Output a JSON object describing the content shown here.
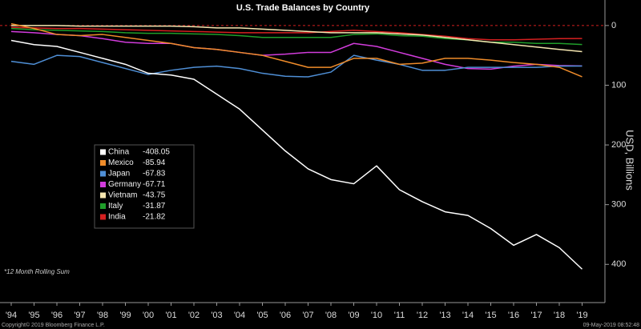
{
  "chart_data": {
    "type": "line",
    "title": "U.S. Trade Balances by Country",
    "y_axis_label": "USD, Billions",
    "note": "*12 Month Rolling Sum",
    "copyright": "Copyright© 2019 Bloomberg Finance L.P.",
    "timestamp": "09-May-2019 08:52:48",
    "categories": [
      "'94",
      "'95",
      "'96",
      "'97",
      "'98",
      "'99",
      "'00",
      "'01",
      "'02",
      "'03",
      "'04",
      "'05",
      "'06",
      "'07",
      "'08",
      "'09",
      "'10",
      "'11",
      "'12",
      "'13",
      "'14",
      "'15",
      "'16",
      "'17",
      "'18",
      "'19"
    ],
    "ylim": [
      -464,
      32
    ],
    "yticks": [
      {
        "value": 0,
        "label": "0"
      },
      {
        "value": -100,
        "label": "100"
      },
      {
        "value": -200,
        "label": "200"
      },
      {
        "value": -300,
        "label": "300"
      },
      {
        "value": -400,
        "label": "400"
      }
    ],
    "reference_line": {
      "value": 0,
      "color": "#d62020"
    },
    "series": [
      {
        "name": "China",
        "color": "#ffffff",
        "latest": -408.05,
        "values": [
          -25,
          -32,
          -35,
          -45,
          -55,
          -65,
          -80,
          -83,
          -90,
          -115,
          -140,
          -175,
          -210,
          -240,
          -258,
          -265,
          -235,
          -275,
          -295,
          -312,
          -318,
          -340,
          -368,
          -350,
          -372,
          -408.05
        ]
      },
      {
        "name": "Mexico",
        "color": "#f08c2a",
        "latest": -85.94,
        "values": [
          3,
          -5,
          -15,
          -17,
          -15,
          -20,
          -25,
          -30,
          -37,
          -40,
          -45,
          -50,
          -60,
          -70,
          -70,
          -55,
          -55,
          -65,
          -63,
          -55,
          -55,
          -58,
          -62,
          -65,
          -70,
          -85.94
        ]
      },
      {
        "name": "Japan",
        "color": "#4f8fd6",
        "latest": -67.83,
        "values": [
          -60,
          -65,
          -50,
          -52,
          -62,
          -72,
          -82,
          -75,
          -70,
          -68,
          -72,
          -80,
          -85,
          -86,
          -78,
          -50,
          -58,
          -65,
          -75,
          -75,
          -70,
          -70,
          -70,
          -70,
          -68,
          -67.83
        ]
      },
      {
        "name": "Germany",
        "color": "#d23cdc",
        "latest": -67.71,
        "values": [
          -10,
          -12,
          -15,
          -17,
          -22,
          -28,
          -30,
          -30,
          -37,
          -40,
          -45,
          -50,
          -48,
          -45,
          -45,
          -30,
          -35,
          -45,
          -55,
          -65,
          -72,
          -73,
          -68,
          -65,
          -67,
          -67.71
        ]
      },
      {
        "name": "Vietnam",
        "color": "#f5e6b0",
        "latest": -43.75,
        "values": [
          0,
          0,
          0,
          -1,
          -1,
          -1,
          -1,
          -1,
          -2,
          -4,
          -4,
          -6,
          -8,
          -10,
          -12,
          -12,
          -12,
          -14,
          -16,
          -20,
          -24,
          -28,
          -32,
          -36,
          -40,
          -43.75
        ]
      },
      {
        "name": "Italy",
        "color": "#1f9e2a",
        "latest": -31.87,
        "values": [
          -5,
          -7,
          -8,
          -9,
          -10,
          -12,
          -13,
          -13,
          -14,
          -15,
          -17,
          -20,
          -20,
          -20,
          -20,
          -15,
          -14,
          -17,
          -18,
          -22,
          -24,
          -28,
          -28,
          -30,
          -30,
          -31.87
        ]
      },
      {
        "name": "India",
        "color": "#d62020",
        "latest": -21.82,
        "values": [
          -3,
          -4,
          -5,
          -5,
          -6,
          -7,
          -8,
          -9,
          -10,
          -11,
          -12,
          -12,
          -12,
          -12,
          -10,
          -8,
          -10,
          -12,
          -15,
          -18,
          -22,
          -24,
          -24,
          -23,
          -22,
          -21.82
        ]
      }
    ]
  }
}
